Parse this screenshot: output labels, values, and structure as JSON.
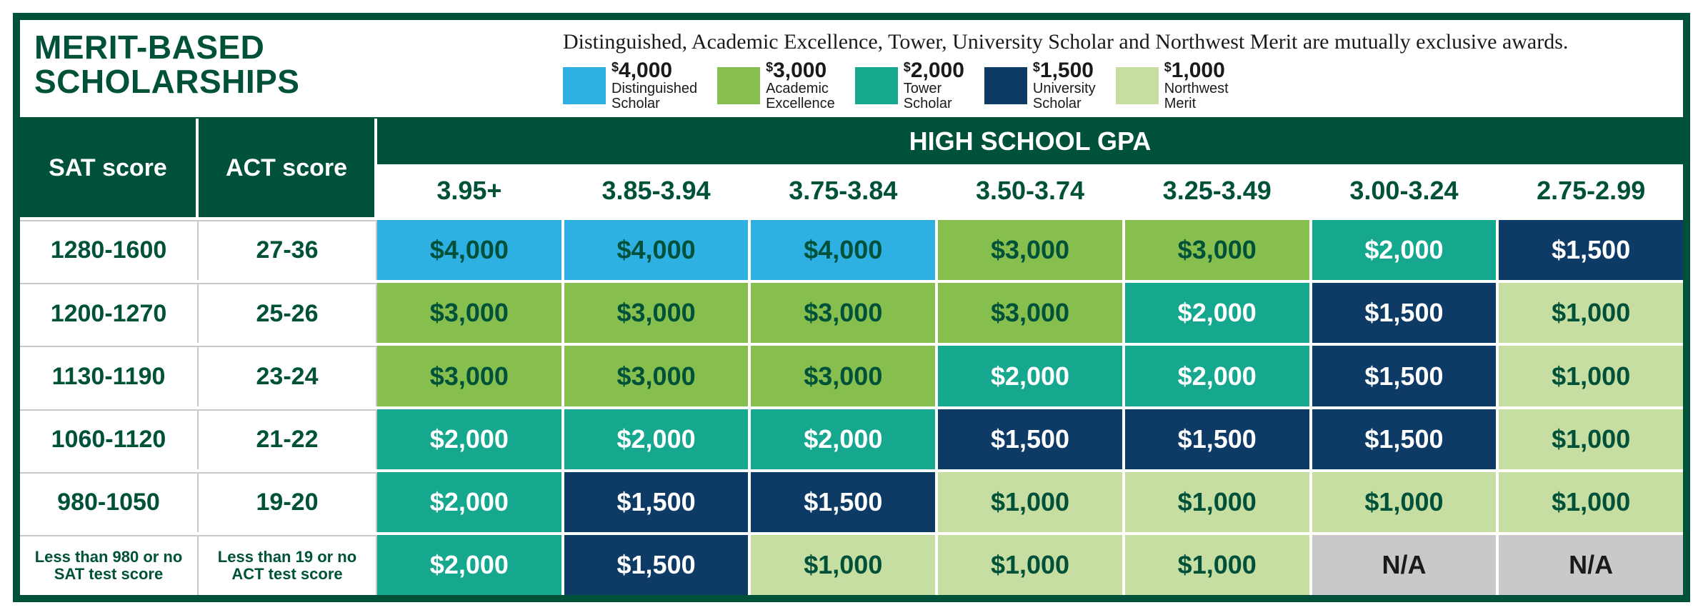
{
  "title": "MERIT-BASED\nSCHOLARSHIPS",
  "legend_note": "Distinguished, Academic Excellence, Tower, University Scholar and Northwest Merit are mutually exclusive awards.",
  "tiers": [
    {
      "amount": "4,000",
      "name": "Distinguished\nScholar",
      "color": "#2eb0e3",
      "text": "#00513a"
    },
    {
      "amount": "3,000",
      "name": "Academic\nExcellence",
      "color": "#86bf4d",
      "text": "#00513a"
    },
    {
      "amount": "2,000",
      "name": "Tower\nScholar",
      "color": "#15a88f",
      "text": "#ffffff"
    },
    {
      "amount": "1,500",
      "name": "University\nScholar",
      "color": "#0d3b66",
      "text": "#ffffff"
    },
    {
      "amount": "1,000",
      "name": "Northwest\nMerit",
      "color": "#c7dea3",
      "text": "#00513a"
    }
  ],
  "na_color": "#c9c9c9",
  "na_text_color": "#1a1a1a",
  "headers": {
    "sat": "SAT score",
    "act": "ACT score",
    "gpa_title": "HIGH SCHOOL GPA",
    "gpa_ranges": [
      "3.95+",
      "3.85-3.94",
      "3.75-3.84",
      "3.50-3.74",
      "3.25-3.49",
      "3.00-3.24",
      "2.75-2.99"
    ]
  },
  "rows": [
    {
      "sat": "1280-1600",
      "act": "27-36",
      "cells": [
        {
          "value": "$4,000",
          "tier": 0
        },
        {
          "value": "$4,000",
          "tier": 0
        },
        {
          "value": "$4,000",
          "tier": 0
        },
        {
          "value": "$3,000",
          "tier": 1
        },
        {
          "value": "$3,000",
          "tier": 1
        },
        {
          "value": "$2,000",
          "tier": 2
        },
        {
          "value": "$1,500",
          "tier": 3
        }
      ]
    },
    {
      "sat": "1200-1270",
      "act": "25-26",
      "cells": [
        {
          "value": "$3,000",
          "tier": 1
        },
        {
          "value": "$3,000",
          "tier": 1
        },
        {
          "value": "$3,000",
          "tier": 1
        },
        {
          "value": "$3,000",
          "tier": 1
        },
        {
          "value": "$2,000",
          "tier": 2
        },
        {
          "value": "$1,500",
          "tier": 3
        },
        {
          "value": "$1,000",
          "tier": 4
        }
      ]
    },
    {
      "sat": "1130-1190",
      "act": "23-24",
      "cells": [
        {
          "value": "$3,000",
          "tier": 1
        },
        {
          "value": "$3,000",
          "tier": 1
        },
        {
          "value": "$3,000",
          "tier": 1
        },
        {
          "value": "$2,000",
          "tier": 2
        },
        {
          "value": "$2,000",
          "tier": 2
        },
        {
          "value": "$1,500",
          "tier": 3
        },
        {
          "value": "$1,000",
          "tier": 4
        }
      ]
    },
    {
      "sat": "1060-1120",
      "act": "21-22",
      "cells": [
        {
          "value": "$2,000",
          "tier": 2
        },
        {
          "value": "$2,000",
          "tier": 2
        },
        {
          "value": "$2,000",
          "tier": 2
        },
        {
          "value": "$1,500",
          "tier": 3
        },
        {
          "value": "$1,500",
          "tier": 3
        },
        {
          "value": "$1,500",
          "tier": 3
        },
        {
          "value": "$1,000",
          "tier": 4
        }
      ]
    },
    {
      "sat": "980-1050",
      "act": "19-20",
      "cells": [
        {
          "value": "$2,000",
          "tier": 2
        },
        {
          "value": "$1,500",
          "tier": 3
        },
        {
          "value": "$1,500",
          "tier": 3
        },
        {
          "value": "$1,000",
          "tier": 4
        },
        {
          "value": "$1,000",
          "tier": 4
        },
        {
          "value": "$1,000",
          "tier": 4
        },
        {
          "value": "$1,000",
          "tier": 4
        }
      ]
    },
    {
      "sat": "Less than 980 or no SAT test score",
      "act": "Less than 19 or no ACT test score",
      "small": true,
      "cells": [
        {
          "value": "$2,000",
          "tier": 2
        },
        {
          "value": "$1,500",
          "tier": 3
        },
        {
          "value": "$1,000",
          "tier": 4
        },
        {
          "value": "$1,000",
          "tier": 4
        },
        {
          "value": "$1,000",
          "tier": 4
        },
        {
          "value": "N/A",
          "tier": -1
        },
        {
          "value": "N/A",
          "tier": -1
        }
      ]
    }
  ]
}
